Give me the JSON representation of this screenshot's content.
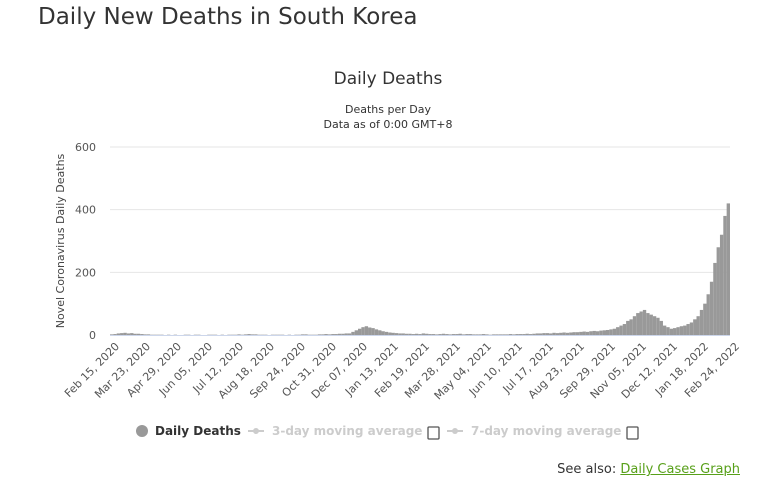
{
  "page_title": "Daily New Deaths in South Korea",
  "see_also": {
    "label": "See also:",
    "link": "Daily Cases Graph"
  },
  "chart_data": {
    "type": "bar",
    "title": "Daily Deaths",
    "subtitle": [
      "Deaths per Day",
      "Data as of 0:00 GMT+8"
    ],
    "ylabel": "Novel Coronavirus Daily Deaths",
    "xlabel": "",
    "ylim": [
      0,
      600
    ],
    "yticks": [
      0,
      200,
      400,
      600
    ],
    "grid": true,
    "start_date": "2020-02-15",
    "days_per_value": 4,
    "xtick_labels": [
      "Feb 15, 2020",
      "Mar 23, 2020",
      "Apr 29, 2020",
      "Jun 05, 2020",
      "Jul 12, 2020",
      "Aug 18, 2020",
      "Sep 24, 2020",
      "Oct 31, 2020",
      "Dec 07, 2020",
      "Jan 13, 2021",
      "Feb 19, 2021",
      "Mar 28, 2021",
      "May 04, 2021",
      "Jun 10, 2021",
      "Jul 17, 2021",
      "Aug 23, 2021",
      "Sep 29, 2021",
      "Nov 05, 2021",
      "Dec 12, 2021",
      "Jan 18, 2022",
      "Feb 24, 2022"
    ],
    "values": [
      2,
      3,
      5,
      6,
      7,
      5,
      6,
      4,
      4,
      3,
      2,
      2,
      1,
      1,
      1,
      1,
      0,
      1,
      0,
      1,
      0,
      0,
      1,
      1,
      0,
      1,
      1,
      0,
      0,
      1,
      1,
      1,
      0,
      1,
      0,
      1,
      1,
      1,
      2,
      1,
      2,
      3,
      2,
      2,
      1,
      1,
      1,
      0,
      1,
      1,
      1,
      1,
      0,
      1,
      0,
      1,
      1,
      2,
      2,
      1,
      1,
      1,
      2,
      2,
      3,
      2,
      3,
      3,
      4,
      4,
      5,
      5,
      10,
      15,
      20,
      25,
      28,
      24,
      22,
      18,
      15,
      12,
      10,
      8,
      7,
      6,
      5,
      5,
      4,
      4,
      3,
      4,
      3,
      5,
      4,
      3,
      3,
      2,
      3,
      4,
      3,
      2,
      3,
      3,
      4,
      2,
      3,
      3,
      2,
      2,
      2,
      3,
      2,
      1,
      2,
      2,
      2,
      2,
      2,
      3,
      2,
      3,
      3,
      3,
      4,
      3,
      4,
      5,
      5,
      6,
      6,
      5,
      7,
      6,
      7,
      8,
      7,
      8,
      9,
      9,
      10,
      11,
      10,
      12,
      13,
      12,
      14,
      15,
      16,
      18,
      20,
      25,
      30,
      35,
      45,
      50,
      60,
      70,
      75,
      80,
      70,
      65,
      60,
      55,
      45,
      30,
      25,
      20,
      22,
      25,
      28,
      30,
      35,
      40,
      50,
      60,
      80,
      100,
      130,
      170,
      230,
      280,
      320,
      380,
      420
    ],
    "legend": [
      {
        "label": "Daily Deaths",
        "active": true,
        "color": "#999999"
      },
      {
        "label": "3-day moving average",
        "active": false,
        "color": "#cccccc"
      },
      {
        "label": "7-day moving average",
        "active": false,
        "color": "#cccccc"
      }
    ],
    "legend_position": "bottom"
  }
}
